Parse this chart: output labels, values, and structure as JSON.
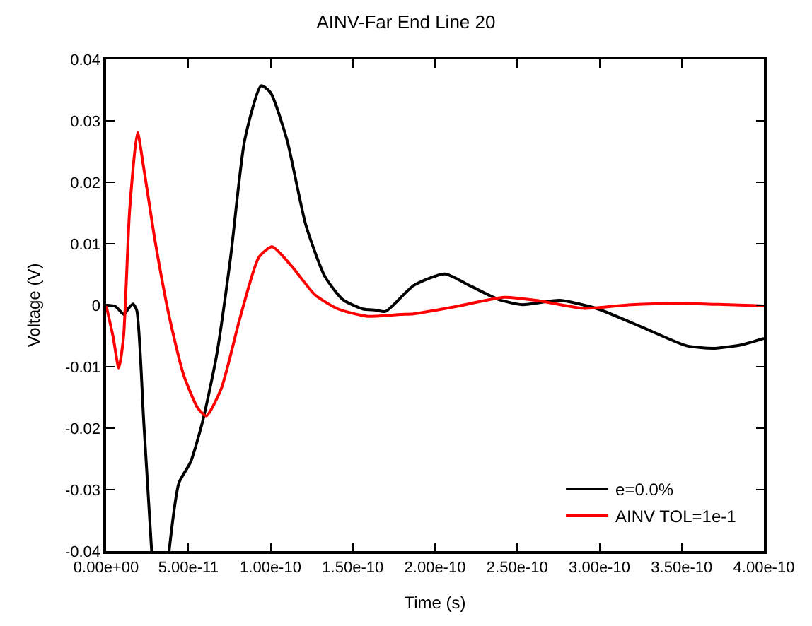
{
  "chart_data": {
    "type": "line",
    "title": "AINV-Far End Line 20",
    "xlabel": "Time (s)",
    "ylabel": "Voltage (V)",
    "xlim": [
      0,
      4e-10
    ],
    "ylim": [
      -0.04,
      0.04
    ],
    "xticks": [
      {
        "value": 0,
        "label": "0.00e+00"
      },
      {
        "value": 5e-11,
        "label": "5.00e-11"
      },
      {
        "value": 1e-10,
        "label": "1.00e-10"
      },
      {
        "value": 1.5e-10,
        "label": "1.50e-10"
      },
      {
        "value": 2e-10,
        "label": "2.00e-10"
      },
      {
        "value": 2.5e-10,
        "label": "2.50e-10"
      },
      {
        "value": 3e-10,
        "label": "3.00e-10"
      },
      {
        "value": 3.5e-10,
        "label": "3.50e-10"
      },
      {
        "value": 4e-10,
        "label": "4.00e-10"
      }
    ],
    "yticks": [
      -0.04,
      -0.03,
      -0.02,
      -0.01,
      0,
      0.01,
      0.02,
      0.03,
      0.04
    ],
    "legend": "bottom right",
    "marker": "none",
    "line_style": "solid",
    "series": [
      {
        "name": "e=0.0%",
        "color": "#000000",
        "x": [
          0,
          5.7e-12,
          1.09e-11,
          1.34e-11,
          1.63e-11,
          1.86e-11,
          2.29e-11,
          2.77e-11,
          3.3e-11,
          3.83e-11,
          4.43e-11,
          5.14e-11,
          5.86e-11,
          6.71e-11,
          7.57e-11,
          8.43e-11,
          9.43e-11,
          1e-10,
          1.1e-10,
          1.214e-10,
          1.33e-10,
          1.44e-10,
          1.56e-10,
          1.64e-10,
          1.7e-10,
          1.87e-10,
          2.06e-10,
          2.21e-10,
          2.39e-10,
          2.53e-10,
          2.76e-10,
          2.99e-10,
          3.27e-10,
          3.53e-10,
          3.7e-10,
          3.87e-10,
          4e-10
        ],
        "values": [
          0,
          -0.0002,
          -0.0015,
          -0.0006,
          0.0002,
          -0.0008,
          -0.019,
          -0.04,
          null,
          -0.04,
          -0.0289,
          -0.0255,
          -0.019,
          -0.0083,
          0.0078,
          0.0269,
          0.0357,
          0.0346,
          0.0269,
          0.0131,
          0.0047,
          0.0009,
          -0.0006,
          -0.0008,
          -0.001,
          0.0032,
          0.0051,
          0.0032,
          0.0009,
          0.0001,
          0.0008,
          -0.0006,
          -0.0037,
          -0.0066,
          -0.007,
          -0.0064,
          -0.0054
        ]
      },
      {
        "name": "AINV TOL=1e-1",
        "color": "#ff0000",
        "x": [
          0,
          4.3e-12,
          7.7e-12,
          1.06e-11,
          1.43e-11,
          1.91e-11,
          2.29e-11,
          3e-11,
          3.86e-11,
          4.71e-11,
          5.57e-11,
          6.09e-11,
          7e-11,
          8.14e-11,
          9.29e-11,
          1.01e-10,
          1.13e-10,
          1.27e-10,
          1.41e-10,
          1.59e-10,
          1.79e-10,
          1.87e-10,
          2.13e-10,
          2.42e-10,
          2.64e-10,
          2.9e-10,
          3.19e-10,
          3.47e-10,
          4e-10
        ],
        "values": [
          0,
          -0.0052,
          -0.0102,
          -0.0052,
          0.0154,
          0.0281,
          0.0223,
          0.0101,
          -0.0021,
          -0.0113,
          -0.0167,
          -0.018,
          -0.0136,
          -0.0021,
          0.0078,
          0.0095,
          0.0063,
          0.0017,
          -0.0006,
          -0.0018,
          -0.0015,
          -0.0014,
          -0.0002,
          0.0013,
          0.0007,
          -0.0005,
          0.0001,
          0.0003,
          -0.0001
        ]
      }
    ]
  }
}
